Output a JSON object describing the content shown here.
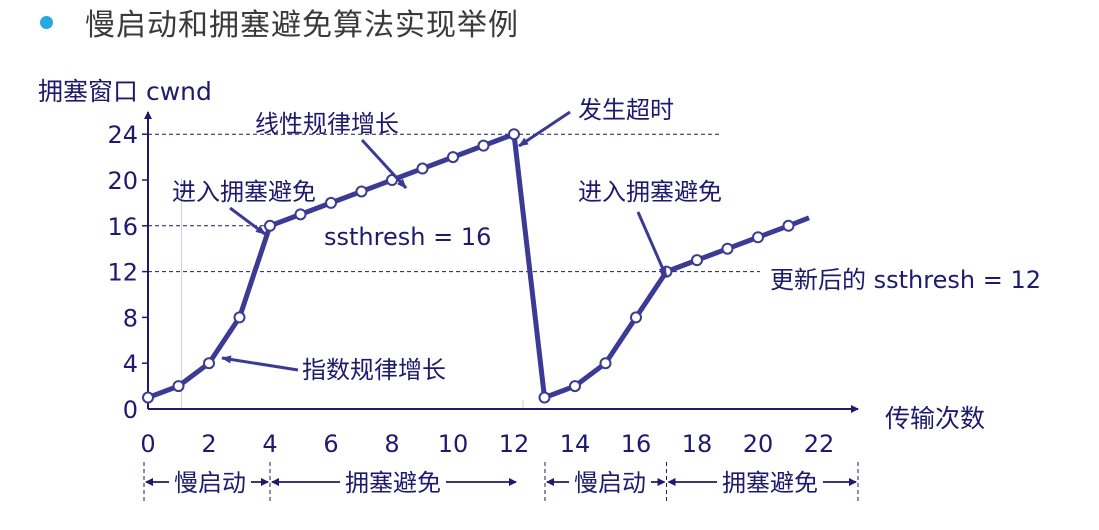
{
  "slide": {
    "title": "慢启动和拥塞避免算法实现举例",
    "bullet_color": "#28a8e0"
  },
  "colors": {
    "line": "#3b3a94",
    "text": "#1e1a6e",
    "axis": "#1e1a6e",
    "grid": "#1e1a6e"
  },
  "chart_data": {
    "type": "line",
    "ylabel": "拥塞窗口 cwnd",
    "xlabel": "传输次数",
    "xlim": [
      0,
      22
    ],
    "ylim": [
      0,
      24
    ],
    "x_ticks": [
      0,
      2,
      4,
      6,
      8,
      10,
      12,
      14,
      16,
      18,
      20,
      22
    ],
    "y_ticks": [
      0,
      4,
      8,
      12,
      16,
      20,
      24
    ],
    "reference_lines": [
      24,
      16,
      12
    ],
    "series": [
      {
        "segments": [
          {
            "x": [
              0,
              1,
              2,
              3,
              4,
              5,
              6,
              7,
              8,
              9,
              10,
              11,
              12
            ],
            "y": [
              1,
              2,
              4,
              8,
              16,
              17,
              18,
              19,
              20,
              21,
              22,
              23,
              24
            ]
          },
          {
            "x": [
              13,
              14,
              15,
              16,
              17,
              18,
              19,
              20,
              21
            ],
            "y": [
              1,
              2,
              4,
              8,
              12,
              13,
              14,
              15,
              16
            ]
          }
        ],
        "extension": {
          "x": [
            21,
            22
          ],
          "y": [
            16,
            16.7
          ]
        }
      }
    ],
    "annotations": {
      "linear_growth": "线性规律增长",
      "timeout": "发生超时",
      "enter_ca_1": "进入拥塞避免",
      "ssthresh_16": "ssthresh = 16",
      "enter_ca_2": "进入拥塞避免",
      "ssthresh_12": "更新后的 ssthresh = 12",
      "exp_growth": "指数规律增长"
    },
    "phases": [
      {
        "label": "慢启动",
        "x_start": 0,
        "x_end": 4
      },
      {
        "label": "拥塞避免",
        "x_start": 4,
        "x_end": 12
      },
      {
        "label": "慢启动",
        "x_start": 13,
        "x_end": 17
      },
      {
        "label": "拥塞避免",
        "x_start": 17,
        "x_end": 22
      }
    ]
  }
}
